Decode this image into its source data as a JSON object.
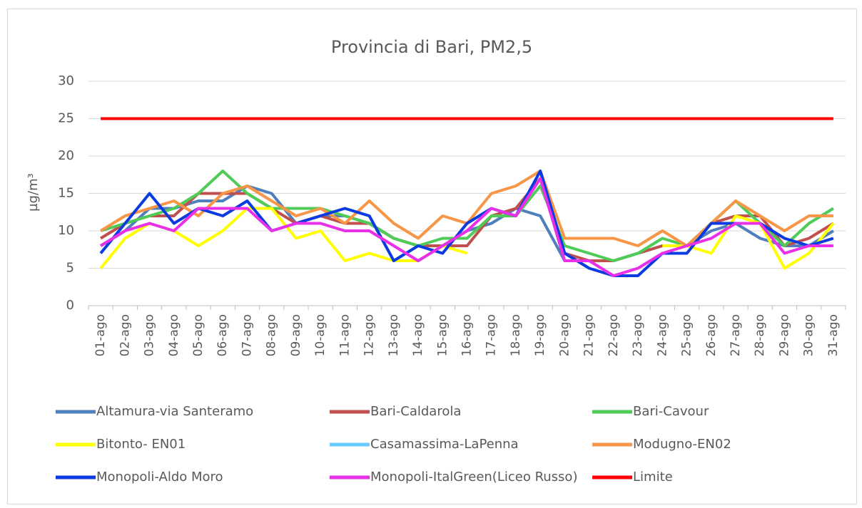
{
  "chart_data": {
    "type": "line",
    "title": "Provincia di Bari, PM2,5",
    "y_label": "µg/m³",
    "categories": [
      "01-ago",
      "02-ago",
      "03-ago",
      "04-ago",
      "05-ago",
      "06-ago",
      "07-ago",
      "08-ago",
      "09-ago",
      "10-ago",
      "11-ago",
      "12-ago",
      "13-ago",
      "14-ago",
      "15-ago",
      "16-ago",
      "17-ago",
      "18-ago",
      "19-ago",
      "20-ago",
      "21-ago",
      "22-ago",
      "23-ago",
      "24-ago",
      "25-ago",
      "26-ago",
      "27-ago",
      "28-ago",
      "29-ago",
      "30-ago",
      "31-ago"
    ],
    "ylim": [
      0,
      30
    ],
    "yticks": [
      0,
      5,
      10,
      15,
      20,
      25,
      30
    ],
    "grid": true,
    "series": [
      {
        "name": "Altamura-via Santeramo",
        "color": "#4f7fbd",
        "values": [
          8,
          10,
          13,
          13,
          14,
          14,
          16,
          15,
          11,
          12,
          12,
          11,
          9,
          8,
          8,
          10,
          11,
          13,
          12,
          6,
          6,
          6,
          7,
          8,
          8,
          10,
          11,
          9,
          8,
          8,
          10
        ]
      },
      {
        "name": "Bari-Caldarola",
        "color": "#c0504d",
        "values": [
          9,
          11,
          12,
          12,
          15,
          15,
          15,
          13,
          11,
          12,
          11,
          11,
          9,
          8,
          8,
          8,
          12,
          13,
          17,
          7,
          6,
          6,
          7,
          8,
          8,
          11,
          12,
          12,
          8,
          9,
          11
        ]
      },
      {
        "name": "Bari-Cavour",
        "color": "#4fcb57",
        "values": [
          10,
          11,
          12,
          13,
          15,
          18,
          15,
          13,
          13,
          13,
          12,
          11,
          9,
          8,
          9,
          9,
          12,
          12,
          16,
          8,
          7,
          6,
          7,
          9,
          8,
          11,
          14,
          11,
          8,
          11,
          13
        ]
      },
      {
        "name": "Bitonto- EN01",
        "color": "#ffff00",
        "values": [
          5,
          9,
          11,
          10,
          8,
          10,
          13,
          13,
          9,
          10,
          6,
          7,
          6,
          6,
          8,
          7,
          null,
          null,
          null,
          null,
          null,
          null,
          null,
          8,
          8,
          7,
          12,
          11,
          5,
          7,
          11
        ]
      },
      {
        "name": "Casamassima-LaPenna",
        "color": "#66ccff",
        "values": [
          null,
          null,
          null,
          null,
          null,
          null,
          null,
          null,
          null,
          null,
          null,
          null,
          null,
          null,
          null,
          null,
          null,
          null,
          null,
          null,
          null,
          null,
          null,
          null,
          null,
          null,
          null,
          null,
          null,
          null,
          null
        ]
      },
      {
        "name": "Modugno-EN02",
        "color": "#f79646",
        "values": [
          10,
          12,
          13,
          14,
          12,
          15,
          16,
          14,
          12,
          13,
          11,
          14,
          11,
          9,
          12,
          11,
          15,
          16,
          18,
          9,
          9,
          9,
          8,
          10,
          8,
          11,
          14,
          12,
          10,
          12,
          12
        ]
      },
      {
        "name": "Monopoli-Aldo Moro",
        "color": "#0a3be0",
        "values": [
          7,
          11,
          15,
          11,
          13,
          12,
          14,
          10,
          11,
          12,
          13,
          12,
          6,
          8,
          7,
          11,
          13,
          12,
          18,
          7,
          5,
          4,
          4,
          7,
          7,
          11,
          11,
          11,
          9,
          8,
          9
        ]
      },
      {
        "name": "Monopoli-ItalGreen(Liceo Russo)",
        "color": "#e930e9",
        "values": [
          8,
          10,
          11,
          10,
          13,
          13,
          13,
          10,
          11,
          11,
          10,
          10,
          8,
          6,
          8,
          10,
          13,
          12,
          17,
          6,
          6,
          4,
          5,
          7,
          8,
          9,
          11,
          11,
          7,
          8,
          8
        ]
      },
      {
        "name": "Limite",
        "color": "#ff0000",
        "values": [
          25,
          25,
          25,
          25,
          25,
          25,
          25,
          25,
          25,
          25,
          25,
          25,
          25,
          25,
          25,
          25,
          25,
          25,
          25,
          25,
          25,
          25,
          25,
          25,
          25,
          25,
          25,
          25,
          25,
          25,
          25
        ]
      }
    ]
  }
}
